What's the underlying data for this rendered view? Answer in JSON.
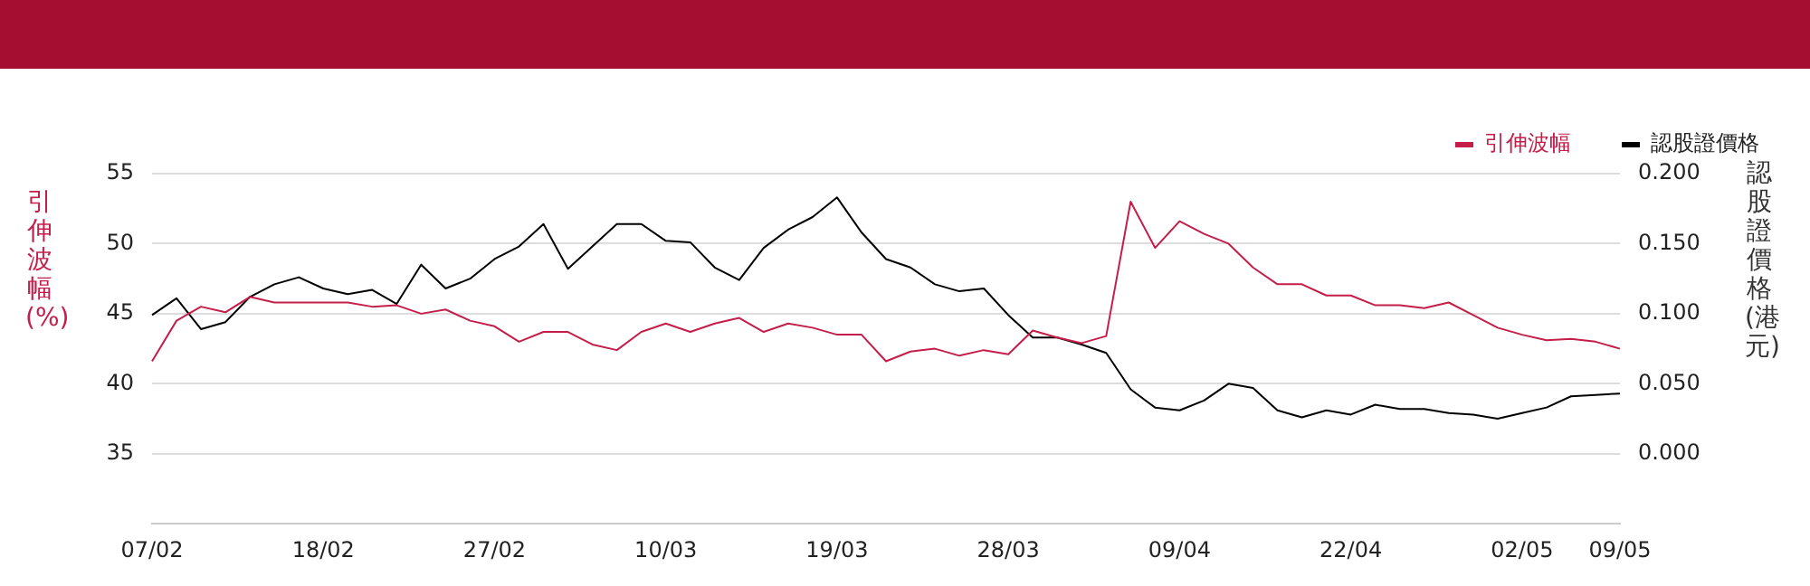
{
  "chart_data": {
    "type": "line",
    "categories": [
      "07/02",
      null,
      null,
      null,
      null,
      null,
      null,
      "18/02",
      null,
      null,
      null,
      null,
      null,
      null,
      "27/02",
      null,
      null,
      null,
      null,
      null,
      null,
      "10/03",
      null,
      null,
      null,
      null,
      null,
      null,
      "19/03",
      null,
      null,
      null,
      null,
      null,
      null,
      "28/03",
      null,
      null,
      null,
      null,
      null,
      null,
      "09/04",
      null,
      null,
      null,
      null,
      null,
      null,
      "22/04",
      null,
      null,
      null,
      null,
      null,
      null,
      "02/05",
      null,
      null,
      null,
      "09/05"
    ],
    "series": [
      {
        "name": "引伸波幅",
        "color": "#c41e4a",
        "values": [
          41.6,
          44.5,
          45.5,
          45.1,
          46.2,
          45.8,
          45.8,
          45.8,
          45.8,
          45.5,
          45.6,
          45.0,
          45.3,
          44.5,
          44.1,
          43.0,
          43.7,
          43.7,
          42.8,
          42.4,
          43.7,
          44.3,
          43.7,
          44.3,
          44.7,
          43.7,
          44.3,
          44.0,
          43.5,
          43.5,
          41.6,
          42.3,
          42.5,
          42.0,
          42.4,
          42.1,
          43.8,
          43.3,
          42.9,
          43.4,
          53.0,
          49.7,
          51.6,
          50.7,
          50.0,
          48.3,
          47.1,
          47.1,
          46.3,
          46.3,
          45.6,
          45.6,
          45.4,
          45.8,
          44.9,
          44.0,
          43.5,
          43.1,
          43.2,
          43.0,
          42.5
        ]
      },
      {
        "name": "認股證價格",
        "color": "#000000",
        "axis": "y2",
        "values": [
          0.099,
          0.111,
          0.089,
          0.094,
          0.112,
          0.121,
          0.126,
          0.118,
          0.114,
          0.117,
          0.107,
          0.135,
          0.118,
          0.125,
          0.139,
          0.148,
          0.164,
          0.132,
          0.148,
          0.164,
          0.164,
          0.152,
          0.151,
          0.133,
          0.124,
          0.147,
          0.16,
          0.169,
          0.183,
          0.158,
          0.139,
          0.133,
          0.121,
          0.116,
          0.118,
          0.099,
          0.083,
          0.083,
          0.078,
          0.072,
          0.046,
          0.033,
          0.031,
          0.038,
          0.05,
          0.047,
          0.031,
          0.026,
          0.031,
          0.028,
          0.035,
          0.032,
          0.032,
          0.029,
          0.028,
          0.025,
          0.029,
          0.033,
          0.041,
          0.042,
          0.043
        ]
      }
    ],
    "ylabel": "引伸波幅(%)",
    "y2label": "認股證價格(港元)",
    "ylim": [
      30,
      55
    ],
    "yticks": [
      35,
      40,
      45,
      50,
      55
    ],
    "y2lim": [
      -0.05,
      0.2
    ],
    "y2ticks": [
      {
        "value": 0,
        "label": "0.000"
      },
      {
        "value": 0.05,
        "label": "0.050"
      },
      {
        "value": 0.1,
        "label": "0.100"
      },
      {
        "value": 0.15,
        "label": "0.150"
      },
      {
        "value": 0.2,
        "label": "0.200"
      }
    ],
    "grid": "y",
    "legend": "top right",
    "marker": "none",
    "line_style": "solid"
  }
}
